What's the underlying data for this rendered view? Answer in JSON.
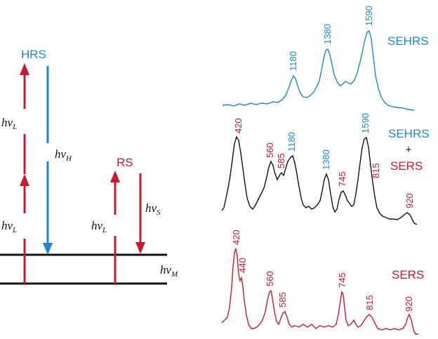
{
  "colors": {
    "blue": "#1b86d3",
    "red": "#c8192e",
    "black": "#111111"
  },
  "energy_diagram": {
    "hrs_label": "HRS",
    "rs_label": "RS",
    "h": "h",
    "nu": "ν",
    "sub_L": "L",
    "sub_H": "H",
    "sub_S": "S",
    "sub_M": "M"
  },
  "spectra": [
    {
      "label": "SEHRS",
      "peaks": [
        {
          "text": "1180",
          "color": "blue"
        },
        {
          "text": "1380",
          "color": "blue"
        },
        {
          "text": "1590",
          "color": "blue"
        }
      ]
    },
    {
      "label_top": "SEHRS",
      "label_plus": "+",
      "label_bottom": "SERS",
      "peaks": [
        {
          "text": "420",
          "color": "red"
        },
        {
          "text": "560",
          "color": "red"
        },
        {
          "text": "585",
          "color": "red"
        },
        {
          "text": "1180",
          "color": "blue"
        },
        {
          "text": "1380",
          "color": "blue"
        },
        {
          "text": "745",
          "color": "red"
        },
        {
          "text": "1590",
          "color": "blue"
        },
        {
          "text": "815",
          "color": "red"
        },
        {
          "text": "920",
          "color": "red"
        }
      ]
    },
    {
      "label": "SERS",
      "peaks": [
        {
          "text": "420",
          "color": "red"
        },
        {
          "text": "440",
          "color": "red"
        },
        {
          "text": "560",
          "color": "red"
        },
        {
          "text": "585",
          "color": "red"
        },
        {
          "text": "745",
          "color": "red"
        },
        {
          "text": "815",
          "color": "red"
        },
        {
          "text": "920",
          "color": "red"
        }
      ]
    }
  ]
}
